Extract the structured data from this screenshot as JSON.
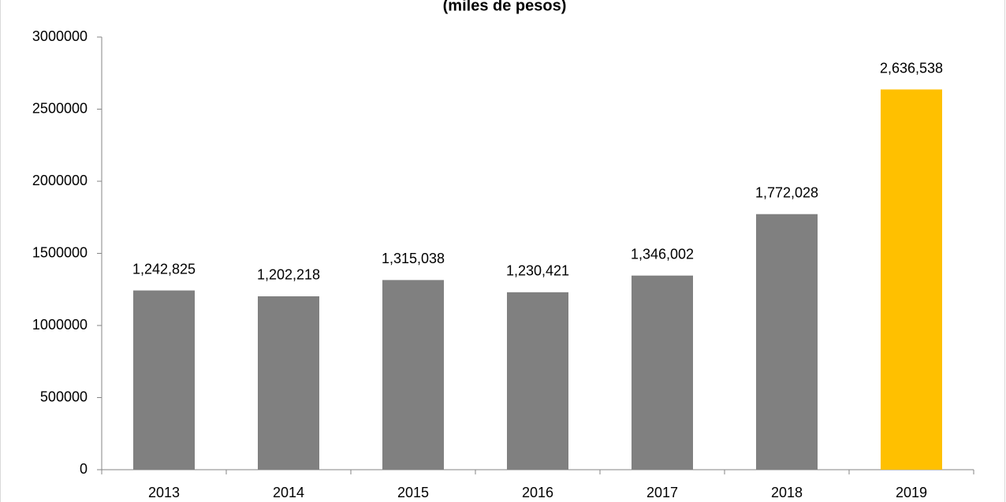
{
  "chart_data": {
    "type": "bar",
    "title": "(miles de pesos)",
    "categories": [
      "2013",
      "2014",
      "2015",
      "2016",
      "2017",
      "2018",
      "2019"
    ],
    "values": [
      1242825,
      1202218,
      1315038,
      1230421,
      1346002,
      1772028,
      2636538
    ],
    "value_labels": [
      "1,242,825",
      "1,202,218",
      "1,315,038",
      "1,230,421",
      "1,346,002",
      "1,772,028",
      "2,636,538"
    ],
    "colors": [
      "#808080",
      "#808080",
      "#808080",
      "#808080",
      "#808080",
      "#808080",
      "#ffc000"
    ],
    "ylim": [
      0,
      3000000
    ],
    "yticks": [
      0,
      500000,
      1000000,
      1500000,
      2000000,
      2500000,
      3000000
    ],
    "grid": false
  }
}
